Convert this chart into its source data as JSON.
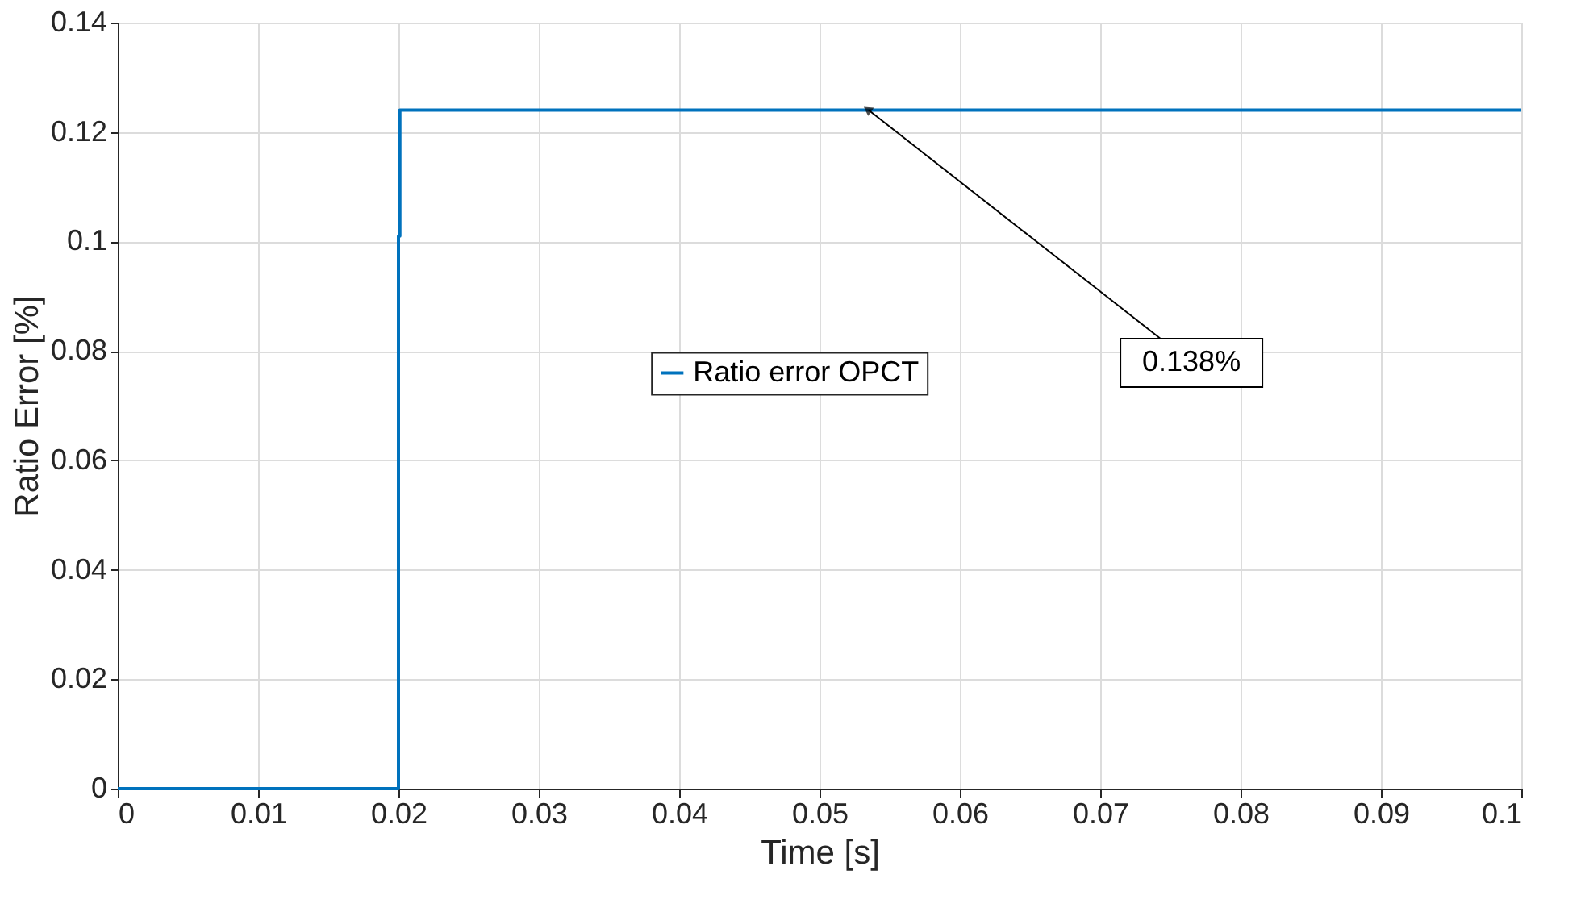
{
  "chart_data": {
    "type": "line",
    "xlabel": "Time [s]",
    "ylabel": "Ratio Error [%]",
    "x": [
      0,
      0.02,
      0.02,
      0.0201,
      0.0201,
      0.1
    ],
    "series": [
      {
        "name": "Ratio error OPCT",
        "color": "#0072bd",
        "values": [
          0,
          0,
          0.101,
          0.101,
          0.124,
          0.124
        ]
      }
    ],
    "xlim": [
      0,
      0.1
    ],
    "xticks": [
      0,
      0.01,
      0.02,
      0.03,
      0.04,
      0.05,
      0.06,
      0.07,
      0.08,
      0.09,
      0.1
    ],
    "ylim": [
      0,
      0.14
    ],
    "yticks": [
      0,
      0.02,
      0.04,
      0.06,
      0.08,
      0.1,
      0.12,
      0.14
    ],
    "grid": true,
    "legend": "center",
    "marker": "none",
    "line_style": "solid",
    "annotations": [
      {
        "text": "0.138%",
        "x": 0.0535,
        "y": 0.124
      }
    ]
  }
}
